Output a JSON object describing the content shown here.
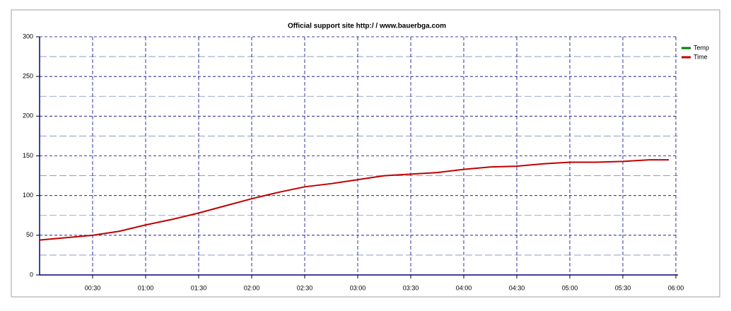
{
  "chart_data": {
    "type": "line",
    "title": "Official support site http:/ / www.bauerbga.com",
    "x": [
      0,
      15,
      30,
      45,
      60,
      75,
      90,
      105,
      120,
      135,
      150,
      165,
      180,
      195,
      210,
      225,
      240,
      255,
      270,
      285,
      300,
      315,
      330,
      345,
      356
    ],
    "series": [
      {
        "name": "Temp",
        "color": "#008000",
        "values": [
          null,
          null,
          null,
          null,
          null,
          null,
          null,
          null,
          null,
          null,
          null,
          null,
          null,
          null,
          null,
          null,
          null,
          null,
          null,
          null,
          null,
          null,
          null,
          null,
          null
        ]
      },
      {
        "name": "Time",
        "color": "#c00000",
        "values": [
          44,
          47,
          50,
          55,
          63,
          70,
          78,
          87,
          96,
          104,
          111,
          115,
          120,
          125,
          127,
          129,
          133,
          136,
          137,
          140,
          142,
          142,
          143,
          145,
          145
        ]
      }
    ],
    "xlim": [
      0,
      360
    ],
    "xticks": [
      {
        "value": 30,
        "label": "00:30"
      },
      {
        "value": 60,
        "label": "01:00"
      },
      {
        "value": 90,
        "label": "01:30"
      },
      {
        "value": 120,
        "label": "02:00"
      },
      {
        "value": 150,
        "label": "02:30"
      },
      {
        "value": 180,
        "label": "03:00"
      },
      {
        "value": 210,
        "label": "03:30"
      },
      {
        "value": 240,
        "label": "04:00"
      },
      {
        "value": 270,
        "label": "04:30"
      },
      {
        "value": 300,
        "label": "05:00"
      },
      {
        "value": 330,
        "label": "05:30"
      },
      {
        "value": 360,
        "label": "06:00"
      }
    ],
    "ylim": [
      0,
      300
    ],
    "yticks": [
      0,
      50,
      100,
      150,
      200,
      250,
      300
    ],
    "minor_yticks": [
      25,
      75,
      125,
      175,
      225,
      275
    ],
    "grid": true,
    "legend": "right"
  }
}
